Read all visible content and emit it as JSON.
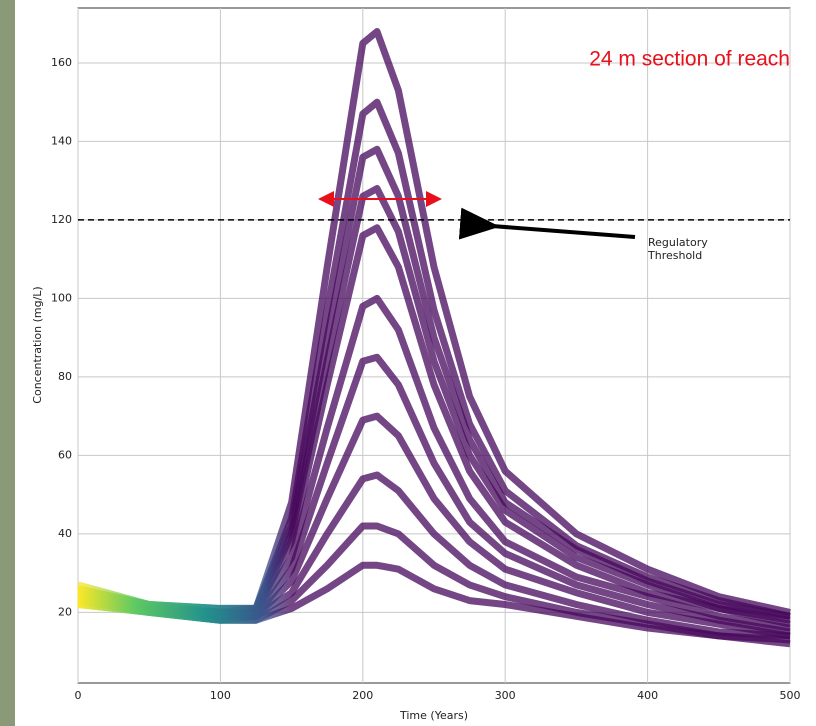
{
  "chart_data": {
    "type": "line",
    "xlabel": "Time (Years)",
    "ylabel": "Concentration (mg/L)",
    "annotation": "24 m section of reach",
    "threshold_label": "Regulatory\nThreshold",
    "threshold": 120,
    "xlim": [
      0,
      500
    ],
    "ylim": [
      2,
      174
    ],
    "xticks": [
      0,
      100,
      200,
      300,
      400,
      500
    ],
    "yticks": [
      20,
      40,
      60,
      80,
      100,
      120,
      140,
      160
    ],
    "grid": true,
    "colorscale": {
      "x": [
        0,
        40,
        90,
        130,
        150
      ],
      "colors": [
        "#fde725",
        "#5ec962",
        "#21918c",
        "#3b528b",
        "#46085c"
      ]
    },
    "x": [
      0,
      50,
      100,
      125,
      150,
      175,
      200,
      210,
      225,
      250,
      275,
      300,
      350,
      400,
      450,
      500
    ],
    "series": [
      {
        "values": [
          27,
          22,
          21,
          21,
          48,
          108,
          165,
          168,
          153,
          108,
          75,
          56,
          40,
          31,
          24,
          20
        ]
      },
      {
        "values": [
          26,
          22,
          21,
          21,
          44,
          97,
          147,
          150,
          137,
          97,
          68,
          51,
          37,
          29,
          23,
          19
        ]
      },
      {
        "values": [
          26,
          22,
          20,
          21,
          42,
          90,
          136,
          138,
          126,
          90,
          64,
          48,
          36,
          28,
          22,
          19
        ]
      },
      {
        "values": [
          25,
          21,
          20,
          20,
          40,
          84,
          126,
          128,
          117,
          84,
          60,
          46,
          34,
          27,
          21,
          18
        ]
      },
      {
        "values": [
          25,
          21,
          20,
          20,
          38,
          78,
          116,
          118,
          108,
          78,
          56,
          43,
          32,
          25,
          21,
          17
        ]
      },
      {
        "values": [
          24,
          21,
          19,
          20,
          34,
          67,
          98,
          100,
          92,
          67,
          49,
          38,
          29,
          24,
          19,
          16
        ]
      },
      {
        "values": [
          24,
          21,
          19,
          19,
          31,
          58,
          84,
          85,
          78,
          58,
          43,
          35,
          27,
          22,
          18,
          15
        ]
      },
      {
        "values": [
          23,
          20,
          19,
          19,
          28,
          49,
          69,
          70,
          65,
          49,
          38,
          31,
          25,
          20,
          17,
          14
        ]
      },
      {
        "values": [
          23,
          20,
          18,
          19,
          25,
          40,
          54,
          55,
          51,
          40,
          32,
          27,
          22,
          18,
          15,
          14
        ]
      },
      {
        "values": [
          22,
          20,
          18,
          18,
          23,
          32,
          42,
          42,
          40,
          32,
          27,
          24,
          20,
          17,
          14,
          13
        ]
      },
      {
        "values": [
          22,
          20,
          18,
          18,
          21,
          26,
          32,
          32,
          31,
          26,
          23,
          22,
          19,
          16,
          14,
          12
        ]
      }
    ]
  }
}
